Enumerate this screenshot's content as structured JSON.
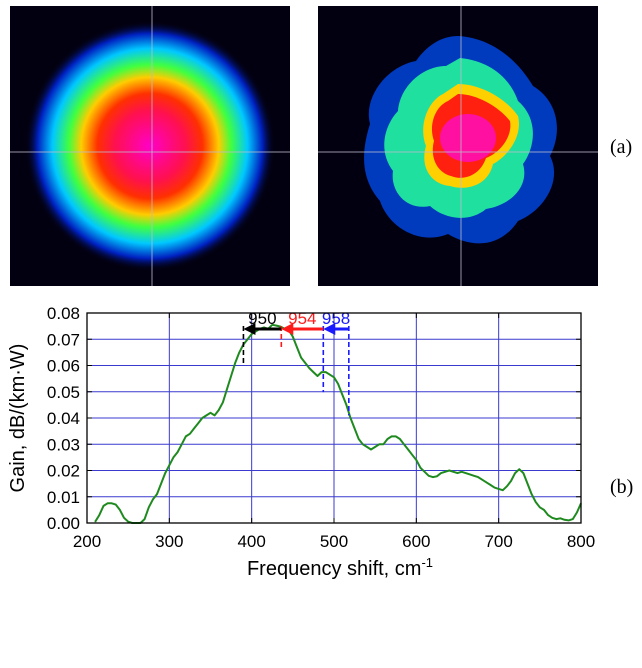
{
  "panels": {
    "a_label": "(a)",
    "b_label": "(b)"
  },
  "beam_images": [
    {
      "name": "beam-profile-left",
      "shape": "smooth-round"
    },
    {
      "name": "beam-profile-right",
      "shape": "irregular"
    }
  ],
  "colors": {
    "curve": "#1f8a1f",
    "grid": "#3a3ad0",
    "marker_950": "#000000",
    "marker_954": "#ff1a1a",
    "marker_958": "#1a1aff"
  },
  "chart_data": {
    "type": "line",
    "title": "",
    "xlabel": "Frequency shift, cm",
    "xlabel_superscript": "-1",
    "ylabel": "Gain, dB/(km·W)",
    "xlim": [
      200,
      800
    ],
    "ylim": [
      0,
      0.08
    ],
    "xticks": [
      "200",
      "300",
      "400",
      "500",
      "600",
      "700",
      "800"
    ],
    "yticks": [
      "0.00",
      "0.01",
      "0.02",
      "0.03",
      "0.04",
      "0.05",
      "0.06",
      "0.07",
      "0.08"
    ],
    "grid": true,
    "series": [
      {
        "x": [
          210,
          215,
          220,
          225,
          230,
          235,
          240,
          245,
          250,
          255,
          260,
          265,
          270,
          275,
          280,
          285,
          290,
          295,
          300,
          305,
          310,
          315,
          320,
          325,
          330,
          335,
          340,
          345,
          350,
          355,
          360,
          365,
          370,
          375,
          380,
          385,
          390,
          395,
          400,
          405,
          410,
          415,
          420,
          425,
          430,
          435,
          440,
          445,
          450,
          455,
          460,
          465,
          470,
          475,
          480,
          485,
          490,
          495,
          500,
          505,
          510,
          515,
          520,
          525,
          530,
          535,
          540,
          545,
          550,
          555,
          560,
          565,
          570,
          575,
          580,
          585,
          590,
          595,
          600,
          605,
          610,
          615,
          620,
          625,
          630,
          635,
          640,
          645,
          650,
          655,
          660,
          665,
          670,
          675,
          680,
          685,
          690,
          695,
          700,
          705,
          710,
          715,
          720,
          725,
          730,
          735,
          740,
          745,
          750,
          755,
          760,
          765,
          770,
          775,
          780,
          785,
          790,
          795,
          800
        ],
        "y": [
          0.0005,
          0.003,
          0.0065,
          0.0075,
          0.0075,
          0.007,
          0.005,
          0.002,
          0.0005,
          0.0,
          0.0,
          0.0,
          0.0015,
          0.006,
          0.009,
          0.011,
          0.015,
          0.019,
          0.022,
          0.025,
          0.027,
          0.03,
          0.033,
          0.034,
          0.036,
          0.038,
          0.04,
          0.041,
          0.042,
          0.041,
          0.043,
          0.046,
          0.051,
          0.056,
          0.061,
          0.065,
          0.068,
          0.07,
          0.072,
          0.073,
          0.074,
          0.0745,
          0.074,
          0.0755,
          0.0752,
          0.0748,
          0.074,
          0.0735,
          0.071,
          0.067,
          0.063,
          0.061,
          0.059,
          0.0575,
          0.056,
          0.0575,
          0.0575,
          0.0565,
          0.0555,
          0.053,
          0.049,
          0.045,
          0.04,
          0.036,
          0.032,
          0.03,
          0.029,
          0.028,
          0.029,
          0.03,
          0.03,
          0.032,
          0.033,
          0.033,
          0.032,
          0.03,
          0.028,
          0.026,
          0.024,
          0.021,
          0.0195,
          0.018,
          0.0175,
          0.0178,
          0.019,
          0.0195,
          0.02,
          0.0195,
          0.019,
          0.0195,
          0.019,
          0.0185,
          0.018,
          0.0175,
          0.0165,
          0.0155,
          0.0145,
          0.0135,
          0.013,
          0.0125,
          0.014,
          0.016,
          0.019,
          0.0205,
          0.019,
          0.015,
          0.011,
          0.008,
          0.006,
          0.005,
          0.003,
          0.002,
          0.0015,
          0.0018,
          0.0012,
          0.001,
          0.0015,
          0.004,
          0.0075
        ]
      }
    ],
    "annotations": [
      {
        "text": "950",
        "from": 390,
        "to": 436,
        "color": "#000000"
      },
      {
        "text": "954",
        "from": 436,
        "to": 487,
        "color": "#ff1a1a"
      },
      {
        "text": "958",
        "from": 487,
        "to": 518,
        "color": "#1a1aff"
      }
    ]
  }
}
